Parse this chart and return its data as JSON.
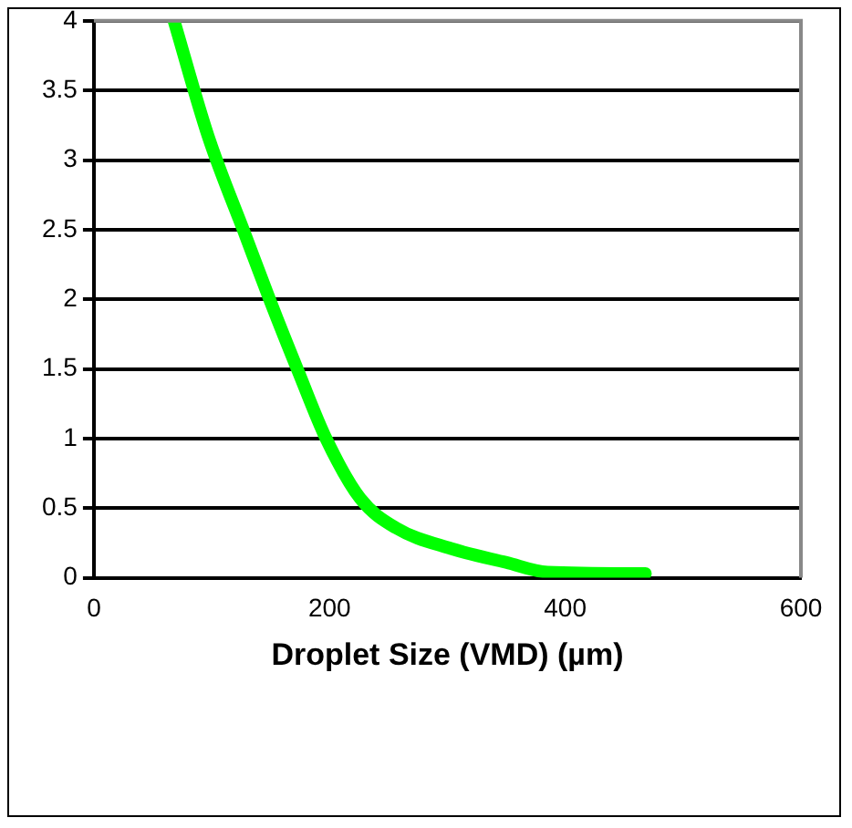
{
  "chart_data": {
    "type": "line",
    "xlabel": "Droplet Size (VMD) (µm)",
    "series": [
      {
        "color": "#00ff00",
        "x": [
          68,
          97,
          129,
          150,
          174,
          197,
          226,
          256,
          303,
          350,
          385,
          468
        ],
        "values": [
          4,
          3.17,
          2.45,
          1.98,
          1.47,
          1.0,
          0.57,
          0.36,
          0.21,
          0.11,
          0.04,
          0.03
        ]
      }
    ],
    "xlim": [
      0,
      600
    ],
    "xticks": [
      0,
      200,
      400,
      600
    ],
    "ylim": [
      0,
      4
    ],
    "yticks": [
      0,
      0.5,
      1,
      1.5,
      2,
      2.5,
      3,
      3.5,
      4
    ],
    "grid": "y",
    "legend": false,
    "marker": "none",
    "line_style": "solid"
  }
}
